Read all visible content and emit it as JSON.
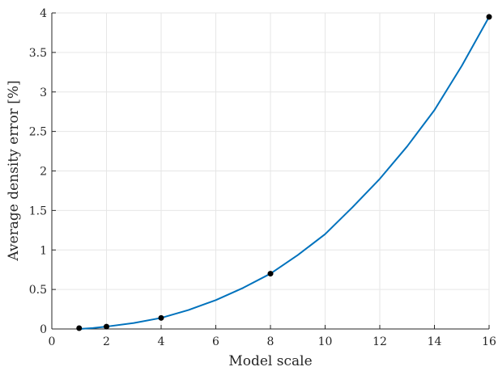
{
  "chart_data": {
    "type": "line",
    "title": "",
    "xlabel": "Model scale",
    "ylabel": "Average density error [%]",
    "xlim": [
      0,
      16
    ],
    "ylim": [
      0,
      4
    ],
    "xticks": [
      0,
      2,
      4,
      6,
      8,
      10,
      12,
      14,
      16
    ],
    "yticks": [
      0,
      0.5,
      1,
      1.5,
      2,
      2.5,
      3,
      3.5,
      4
    ],
    "xtick_labels": [
      "0",
      "2",
      "4",
      "6",
      "8",
      "10",
      "12",
      "14",
      "16"
    ],
    "ytick_labels": [
      "0",
      "0.5",
      "1",
      "1.5",
      "2",
      "2.5",
      "3",
      "3.5",
      "4"
    ],
    "grid": true,
    "legend": "none",
    "series": [
      {
        "kind": "markers",
        "color": "#000000",
        "x": [
          1,
          2,
          4,
          8,
          16
        ],
        "y": [
          0.01,
          0.03,
          0.14,
          0.7,
          3.95
        ]
      },
      {
        "kind": "line",
        "color": "#0072BD",
        "x": [
          1,
          1.5,
          2,
          3,
          4,
          5,
          6,
          7,
          8,
          9,
          10,
          11,
          12,
          13,
          14,
          15,
          16
        ],
        "y": [
          0.0,
          0.012,
          0.03,
          0.075,
          0.14,
          0.24,
          0.365,
          0.52,
          0.7,
          0.935,
          1.2,
          1.54,
          1.9,
          2.31,
          2.77,
          3.33,
          3.95
        ]
      }
    ]
  }
}
